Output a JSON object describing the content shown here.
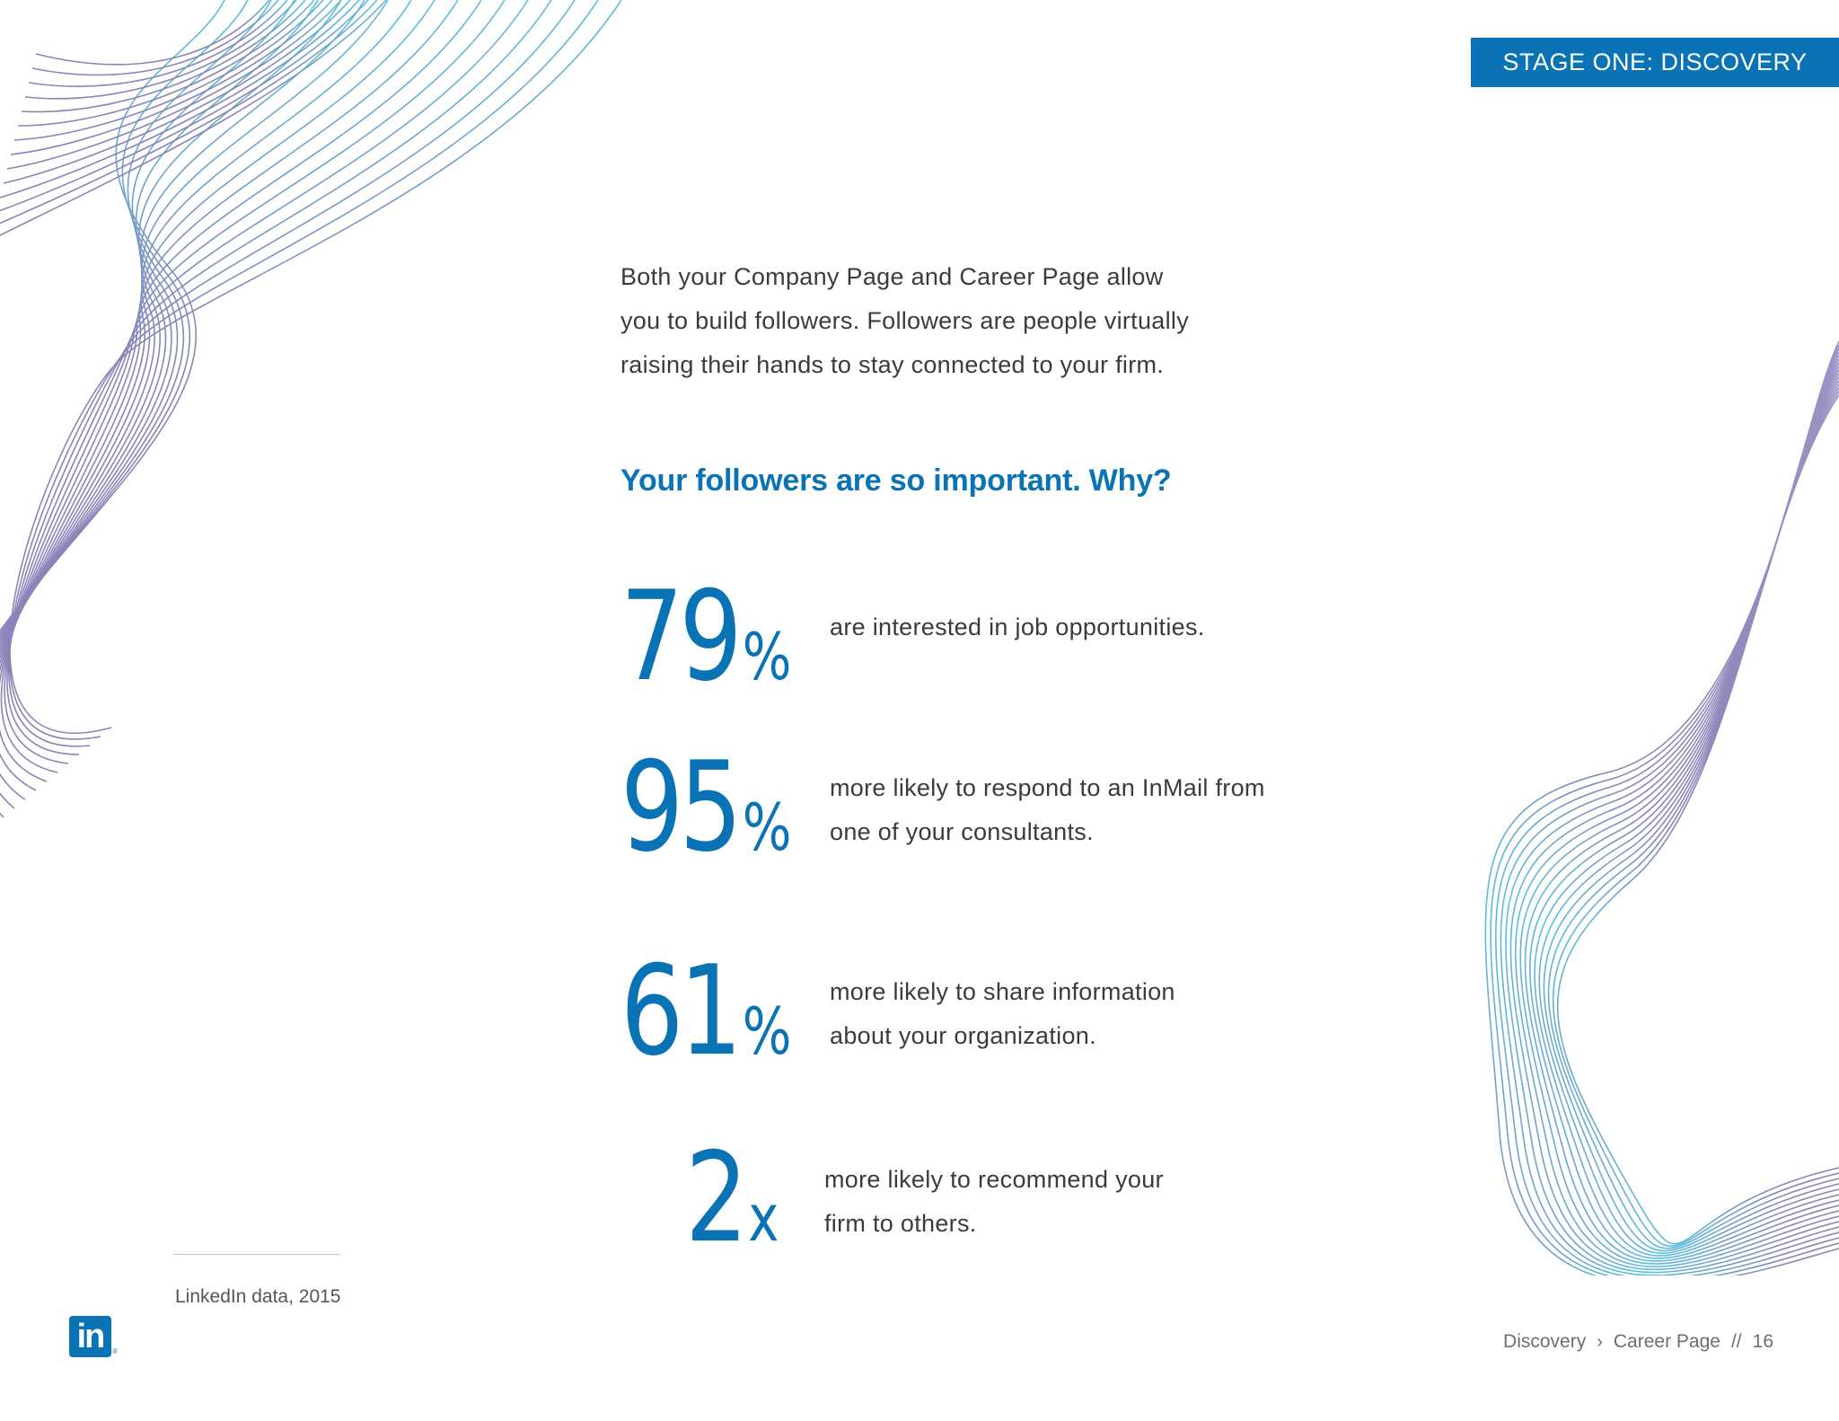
{
  "header": {
    "stage_label": "STAGE ONE: DISCOVERY"
  },
  "intro": {
    "lines": [
      "Both your Company Page and Career Page allow",
      "you to build followers. Followers are people virtually",
      "raising their hands to stay connected to your firm."
    ]
  },
  "subhead": "Your followers are so important. Why?",
  "stats": [
    {
      "value": "79",
      "unit": "%",
      "lines": [
        "are interested in job opportunities."
      ]
    },
    {
      "value": "95",
      "unit": "%",
      "lines": [
        "more likely to respond to an InMail from",
        "one of your consultants."
      ]
    },
    {
      "value": "61",
      "unit": "%",
      "lines": [
        "more likely to share information",
        "about your organization."
      ]
    },
    {
      "value": "2",
      "unit": "x",
      "lines": [
        "more likely to recommend your",
        "firm to others."
      ]
    }
  ],
  "footnote": "LinkedIn data, 2015",
  "logo": {
    "text": "in",
    "icon": "linkedin-logo-icon",
    "color": "#0a73b6"
  },
  "breadcrumb": {
    "section": "Discovery",
    "separator": "›",
    "page": "Career Page",
    "divider": "//",
    "page_number": "16"
  },
  "colors": {
    "accent": "#0a73b6",
    "wave_start": "#5bbfdc",
    "wave_end": "#8a84b8"
  }
}
